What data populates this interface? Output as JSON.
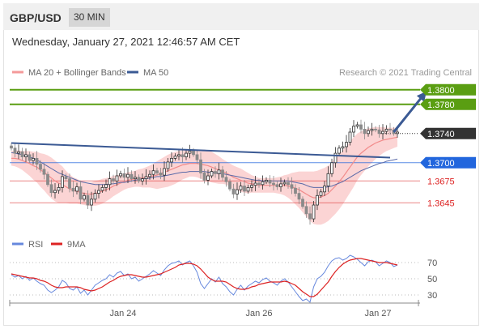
{
  "header": {
    "pair": "GBP/USD",
    "timeframe": "30 MIN"
  },
  "datetime": "Wednesday, January 27, 2021 12:46:57 AM CET",
  "legend": {
    "ma20_bb": "MA 20 + Bollinger Bands",
    "ma50": "MA 50",
    "credit": "Research © 2021 Trading Central"
  },
  "colors": {
    "resistance": "#5a9e12",
    "current": "#333333",
    "pivot": "#2266dd",
    "support": "#dd2222",
    "bollinger": "#f9c6c6",
    "ma50": "#5a6aa8",
    "trendline": "#3b5a94",
    "rsi": "#6688dd",
    "rsi_ma": "#dd2222",
    "candle_up": "#2e2e2e",
    "candle_down": "#8a8a8a"
  },
  "chart_data": [
    {
      "type": "line",
      "subtype": "candlestick",
      "x_ticks": [
        "Jan 24",
        "Jan 26",
        "Jan 27"
      ],
      "price_levels": [
        {
          "value": "1.3800",
          "kind": "resistance"
        },
        {
          "value": "1.3780",
          "kind": "resistance"
        },
        {
          "value": "1.3740",
          "kind": "current"
        },
        {
          "value": "1.3700",
          "kind": "pivot"
        },
        {
          "value": "1.3675",
          "kind": "support"
        },
        {
          "value": "1.3645",
          "kind": "support"
        }
      ],
      "ylim": [
        1.3612,
        1.3812
      ],
      "price_series": [
        1.372,
        1.3713,
        1.3715,
        1.3708,
        1.3711,
        1.3703,
        1.3706,
        1.3698,
        1.3691,
        1.3684,
        1.367,
        1.3659,
        1.3662,
        1.3666,
        1.3681,
        1.3678,
        1.3665,
        1.3661,
        1.3667,
        1.365,
        1.3655,
        1.3642,
        1.365,
        1.3658,
        1.3662,
        1.3666,
        1.367,
        1.3678,
        1.3675,
        1.3682,
        1.3685,
        1.368,
        1.3684,
        1.3678,
        1.368,
        1.3675,
        1.3678,
        1.3681,
        1.3684,
        1.3689,
        1.3686,
        1.3683,
        1.3692,
        1.3701,
        1.3706,
        1.3709,
        1.3711,
        1.3708,
        1.3713,
        1.3716,
        1.3711,
        1.3704,
        1.3686,
        1.3676,
        1.3682,
        1.3688,
        1.3685,
        1.369,
        1.368,
        1.3674,
        1.3664,
        1.3657,
        1.3663,
        1.3668,
        1.3661,
        1.3666,
        1.3669,
        1.3672,
        1.367,
        1.3674,
        1.3676,
        1.3672,
        1.367,
        1.3667,
        1.3671,
        1.3673,
        1.367,
        1.3665,
        1.3658,
        1.365,
        1.364,
        1.363,
        1.3623,
        1.3642,
        1.3655,
        1.366,
        1.3668,
        1.3685,
        1.37,
        1.3713,
        1.372,
        1.3722,
        1.3728,
        1.3742,
        1.375,
        1.3752,
        1.3746,
        1.374,
        1.3744,
        1.3746,
        1.3745,
        1.374,
        1.3743,
        1.3746,
        1.3745,
        1.374,
        1.3742
      ],
      "ma20": [
        1.3706,
        1.3706,
        1.3705,
        1.3703,
        1.3701,
        1.3699,
        1.3696,
        1.3694,
        1.369,
        1.3687,
        1.3683,
        1.3679,
        1.3675,
        1.3672,
        1.367,
        1.3667,
        1.3664,
        1.3662,
        1.3661,
        1.3659,
        1.3658,
        1.3657,
        1.3657,
        1.3658,
        1.3659,
        1.3661,
        1.3663,
        1.3665,
        1.3668,
        1.367,
        1.3672,
        1.3674,
        1.3676,
        1.3677,
        1.3678,
        1.3679,
        1.3679,
        1.368,
        1.3681,
        1.3682,
        1.3683,
        1.3685,
        1.3687,
        1.3689,
        1.3691,
        1.3693,
        1.3695,
        1.3697,
        1.3698,
        1.3699,
        1.3699,
        1.3699,
        1.3698,
        1.3697,
        1.3696,
        1.3694,
        1.3692,
        1.369,
        1.3688,
        1.3686,
        1.3683,
        1.368,
        1.3678,
        1.3676,
        1.3674,
        1.3672,
        1.3671,
        1.367,
        1.3669,
        1.3669,
        1.3669,
        1.3669,
        1.3669,
        1.3669,
        1.3669,
        1.3669,
        1.3668,
        1.3667,
        1.3665,
        1.3663,
        1.366,
        1.3657,
        1.3654,
        1.3652,
        1.3652,
        1.3653,
        1.3655,
        1.3658,
        1.3663,
        1.3668,
        1.3674,
        1.368,
        1.3687,
        1.3694,
        1.3701,
        1.3708,
        1.3713,
        1.3717,
        1.3721,
        1.3724,
        1.3727,
        1.3729,
        1.3731,
        1.3732,
        1.3733,
        1.3734,
        1.3735
      ],
      "ma50": [
        1.3714,
        1.3713,
        1.3712,
        1.3711,
        1.371,
        1.3708,
        1.3706,
        1.3704,
        1.3701,
        1.3698,
        1.3695,
        1.3692,
        1.3689,
        1.3686,
        1.3684,
        1.3682,
        1.368,
        1.3678,
        1.3676,
        1.3674,
        1.3673,
        1.3672,
        1.3671,
        1.367,
        1.367,
        1.367,
        1.367,
        1.3671,
        1.3671,
        1.3672,
        1.3673,
        1.3673,
        1.3674,
        1.3675,
        1.3676,
        1.3677,
        1.3678,
        1.3678,
        1.3679,
        1.368,
        1.3681,
        1.3681,
        1.3682,
        1.3683,
        1.3684,
        1.3685,
        1.3686,
        1.3687,
        1.3687,
        1.3688,
        1.3688,
        1.3688,
        1.3688,
        1.3688,
        1.3687,
        1.3687,
        1.3686,
        1.3685,
        1.3685,
        1.3684,
        1.3683,
        1.3682,
        1.3681,
        1.368,
        1.3679,
        1.3678,
        1.3677,
        1.3676,
        1.3676,
        1.3675,
        1.3675,
        1.3675,
        1.3675,
        1.3675,
        1.3675,
        1.3675,
        1.3675,
        1.3674,
        1.3673,
        1.3672,
        1.3671,
        1.3669,
        1.3667,
        1.3666,
        1.3666,
        1.3666,
        1.3666,
        1.3667,
        1.3668,
        1.367,
        1.3672,
        1.3674,
        1.3677,
        1.368,
        1.3683,
        1.3686,
        1.3689,
        1.3691,
        1.3693,
        1.3695,
        1.3697,
        1.3699,
        1.37,
        1.3702,
        1.3703,
        1.3704,
        1.3705
      ],
      "bb_width": [
        0.001,
        0.0011,
        0.0012,
        0.0013,
        0.0015,
        0.0017,
        0.0019,
        0.0021,
        0.0023,
        0.0025,
        0.0027,
        0.0028,
        0.0028,
        0.0027,
        0.0025,
        0.0022,
        0.002,
        0.0018,
        0.0017,
        0.0016,
        0.0016,
        0.0016,
        0.0016,
        0.0017,
        0.0017,
        0.0017,
        0.0016,
        0.0015,
        0.0014,
        0.0013,
        0.0012,
        0.0011,
        0.0011,
        0.0011,
        0.0011,
        0.0012,
        0.0013,
        0.0014,
        0.0015,
        0.0017,
        0.0019,
        0.002,
        0.0021,
        0.0022,
        0.0022,
        0.0022,
        0.0021,
        0.002,
        0.0019,
        0.0018,
        0.0018,
        0.0019,
        0.002,
        0.0021,
        0.0021,
        0.0021,
        0.002,
        0.0019,
        0.0017,
        0.0016,
        0.0016,
        0.0016,
        0.0016,
        0.0016,
        0.0015,
        0.0014,
        0.0012,
        0.0011,
        0.001,
        0.001,
        0.001,
        0.001,
        0.001,
        0.0011,
        0.0012,
        0.0014,
        0.0016,
        0.0019,
        0.0022,
        0.0025,
        0.0028,
        0.0031,
        0.0034,
        0.0036,
        0.0037,
        0.0038,
        0.0038,
        0.0038,
        0.0038,
        0.0038,
        0.0038,
        0.0037,
        0.0036,
        0.0035,
        0.0034,
        0.0032,
        0.003,
        0.0028,
        0.0026,
        0.0024,
        0.0022,
        0.002,
        0.0018,
        0.0016,
        0.0015,
        0.0014,
        0.0013
      ],
      "trendline": {
        "from": [
          0,
          1.3727
        ],
        "to": [
          104,
          1.3707
        ]
      },
      "arrow": {
        "from": [
          105,
          1.3742
        ],
        "to": [
          114,
          1.3798
        ]
      }
    },
    {
      "type": "line",
      "name": "RSI",
      "levels": [
        "70",
        "50",
        "30"
      ],
      "ylim": [
        20,
        80
      ],
      "series": [
        {
          "name": "RSI",
          "values": [
            55,
            52,
            54,
            50,
            53,
            48,
            51,
            47,
            44,
            42,
            36,
            33,
            36,
            40,
            48,
            45,
            38,
            36,
            40,
            32,
            36,
            30,
            36,
            42,
            45,
            48,
            50,
            55,
            52,
            57,
            59,
            54,
            56,
            50,
            52,
            47,
            50,
            53,
            56,
            60,
            57,
            54,
            61,
            66,
            69,
            70,
            72,
            67,
            70,
            72,
            66,
            58,
            44,
            38,
            44,
            50,
            46,
            52,
            44,
            40,
            34,
            30,
            37,
            42,
            36,
            41,
            44,
            47,
            45,
            49,
            51,
            47,
            45,
            42,
            47,
            50,
            46,
            40,
            34,
            28,
            23,
            25,
            21,
            40,
            50,
            53,
            58,
            66,
            72,
            75,
            76,
            73,
            75,
            79,
            77,
            74,
            70,
            66,
            71,
            73,
            71,
            66,
            69,
            72,
            70,
            65,
            67
          ]
        },
        {
          "name": "9MA",
          "values": [
            56,
            55,
            54,
            53,
            52,
            51,
            51,
            50,
            48,
            47,
            45,
            42,
            40,
            39,
            39,
            40,
            40,
            40,
            40,
            39,
            37,
            36,
            35,
            36,
            38,
            40,
            43,
            46,
            48,
            51,
            53,
            54,
            55,
            55,
            54,
            53,
            52,
            52,
            53,
            54,
            55,
            56,
            58,
            60,
            62,
            64,
            67,
            68,
            69,
            69,
            68,
            66,
            62,
            57,
            52,
            49,
            47,
            47,
            47,
            46,
            43,
            40,
            38,
            37,
            37,
            38,
            40,
            41,
            43,
            44,
            45,
            46,
            46,
            46,
            46,
            47,
            46,
            44,
            42,
            38,
            34,
            31,
            28,
            28,
            31,
            36,
            41,
            46,
            53,
            59,
            64,
            68,
            71,
            73,
            74,
            75,
            75,
            74,
            73,
            72,
            71,
            70,
            70,
            70,
            69,
            68,
            67
          ]
        }
      ]
    }
  ]
}
